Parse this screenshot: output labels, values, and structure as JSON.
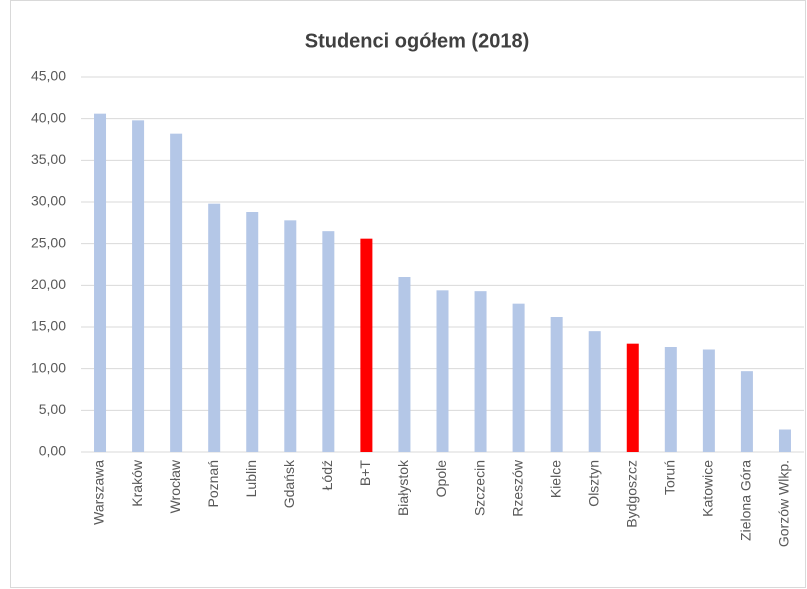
{
  "chart_data": {
    "type": "bar",
    "title": "Studenci ogółem (2018)",
    "categories": [
      "Warszawa",
      "Kraków",
      "Wrocław",
      "Poznań",
      "Lublin",
      "Gdańsk",
      "Łódź",
      "B+T",
      "Białystok",
      "Opole",
      "Szczecin",
      "Rzeszów",
      "Kielce",
      "Olsztyn",
      "Bydgoszcz",
      "Toruń",
      "Katowice",
      "Zielona Góra",
      "Gorzów Wlkp."
    ],
    "values": [
      40.6,
      39.8,
      38.2,
      29.8,
      28.8,
      27.8,
      26.5,
      25.6,
      21.0,
      19.4,
      19.3,
      17.8,
      16.2,
      14.5,
      13.0,
      12.6,
      12.3,
      9.7,
      2.7
    ],
    "colors": [
      "#b4c7e7",
      "#b4c7e7",
      "#b4c7e7",
      "#b4c7e7",
      "#b4c7e7",
      "#b4c7e7",
      "#b4c7e7",
      "#ff0000",
      "#b4c7e7",
      "#b4c7e7",
      "#b4c7e7",
      "#b4c7e7",
      "#b4c7e7",
      "#b4c7e7",
      "#ff0000",
      "#b4c7e7",
      "#b4c7e7",
      "#b4c7e7",
      "#b4c7e7"
    ],
    "ylim": [
      0,
      45
    ],
    "yticks": [
      {
        "value": 0,
        "label": "0,00"
      },
      {
        "value": 5,
        "label": "5,00"
      },
      {
        "value": 10,
        "label": "10,00"
      },
      {
        "value": 15,
        "label": "15,00"
      },
      {
        "value": 20,
        "label": "20,00"
      },
      {
        "value": 25,
        "label": "25,00"
      },
      {
        "value": 30,
        "label": "30,00"
      },
      {
        "value": 35,
        "label": "35,00"
      },
      {
        "value": 40,
        "label": "40,00"
      },
      {
        "value": 45,
        "label": "45,00"
      }
    ],
    "grid": true
  }
}
